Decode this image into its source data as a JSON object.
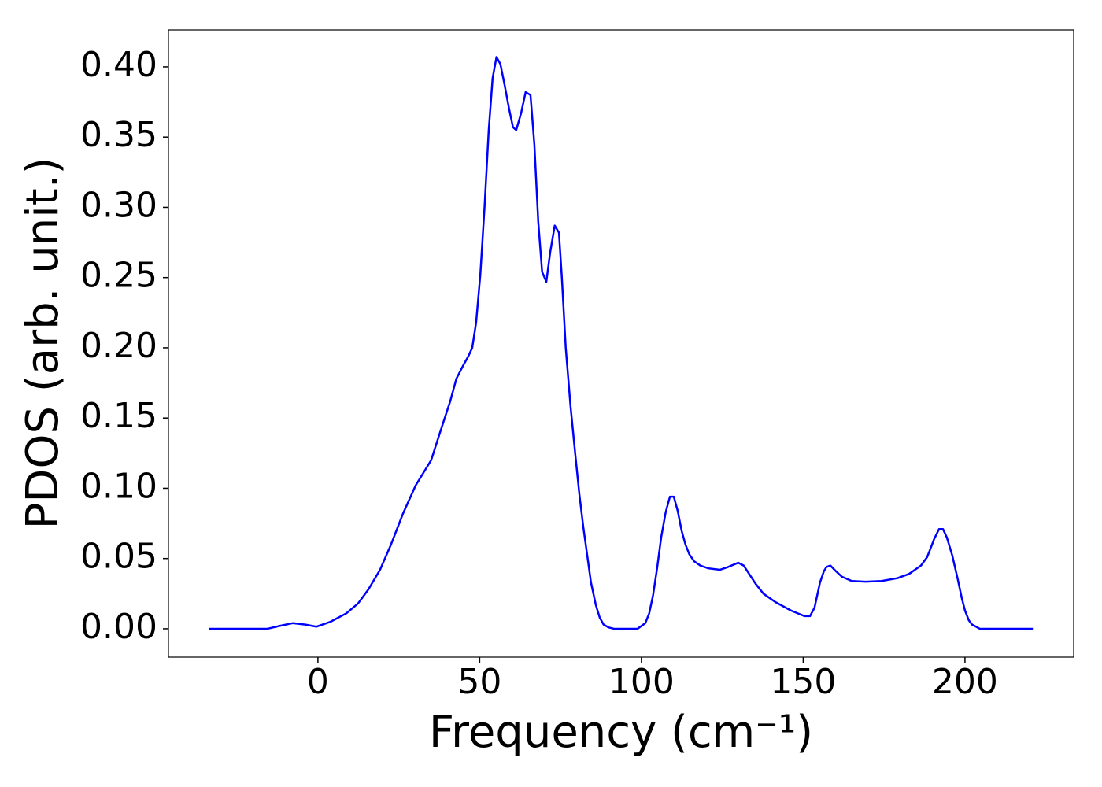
{
  "chart_data": {
    "type": "line",
    "xlabel": "Frequency (cm⁻¹)",
    "ylabel": "PDOS (arb. unit.)",
    "x": [
      -33.6,
      -15.6,
      -11.9,
      -7.8,
      -3.9,
      -0.5,
      3.9,
      8.8,
      12.4,
      15.6,
      19.2,
      22.6,
      26.3,
      30.2,
      35,
      37.5,
      40.9,
      42.8,
      44.8,
      46.5,
      47.7,
      48.9,
      50.2,
      51.5,
      52.8,
      54,
      55.2,
      56.4,
      57.8,
      59.1,
      60.3,
      61.3,
      62.8,
      64.2,
      65.7,
      66.9,
      68.1,
      69.3,
      70.6,
      71.8,
      73.2,
      74.5,
      75.4,
      76.6,
      78.1,
      79.6,
      80.8,
      82,
      83.2,
      84.4,
      85.9,
      87.1,
      88.3,
      89.8,
      91.5,
      98.8,
      101.2,
      102.4,
      103.6,
      104.9,
      106.1,
      107.5,
      108.8,
      110,
      111.2,
      112.4,
      113.6,
      114.8,
      116.3,
      118.2,
      120.7,
      124.3,
      126.8,
      129.9,
      131.6,
      133.3,
      135.3,
      137.7,
      141.4,
      146.2,
      150.4,
      152.1,
      153.5,
      155.2,
      156.4,
      157.2,
      158.4,
      160.1,
      162,
      165,
      169.3,
      174.2,
      179.1,
      182.7,
      186.4,
      188.3,
      189.5,
      190.5,
      192,
      193.2,
      194.4,
      196.1,
      197.8,
      199,
      200,
      201.2,
      202.2,
      204.6,
      221
    ],
    "series": [
      {
        "name": "PDOS",
        "color": "#0000ff",
        "values": [
          0,
          0,
          0.002,
          0.004,
          0.003,
          0.0015,
          0.005,
          0.011,
          0.018,
          0.028,
          0.042,
          0.06,
          0.082,
          0.102,
          0.12,
          0.138,
          0.162,
          0.178,
          0.187,
          0.194,
          0.2,
          0.218,
          0.252,
          0.3,
          0.355,
          0.392,
          0.407,
          0.402,
          0.386,
          0.37,
          0.357,
          0.355,
          0.367,
          0.382,
          0.38,
          0.345,
          0.29,
          0.254,
          0.247,
          0.268,
          0.287,
          0.282,
          0.25,
          0.2,
          0.158,
          0.123,
          0.096,
          0.073,
          0.053,
          0.033,
          0.017,
          0.008,
          0.003,
          0.001,
          0,
          0,
          0.004,
          0.011,
          0.024,
          0.044,
          0.065,
          0.083,
          0.094,
          0.094,
          0.084,
          0.07,
          0.06,
          0.053,
          0.048,
          0.045,
          0.043,
          0.042,
          0.044,
          0.047,
          0.045,
          0.039,
          0.032,
          0.025,
          0.019,
          0.013,
          0.009,
          0.009,
          0.015,
          0.033,
          0.041,
          0.044,
          0.045,
          0.041,
          0.037,
          0.034,
          0.0335,
          0.034,
          0.036,
          0.039,
          0.045,
          0.051,
          0.058,
          0.064,
          0.071,
          0.071,
          0.065,
          0.052,
          0.035,
          0.022,
          0.013,
          0.006,
          0.003,
          0,
          0
        ]
      }
    ],
    "xlim": [
      -46.2,
      233.6
    ],
    "ylim": [
      -0.0202,
      0.4263
    ],
    "xticks": [
      0,
      50,
      100,
      150,
      200
    ],
    "yticks": [
      {
        "value": 0,
        "label": "0.00"
      },
      {
        "value": 0.05,
        "label": "0.05"
      },
      {
        "value": 0.1,
        "label": "0.10"
      },
      {
        "value": 0.15,
        "label": "0.15"
      },
      {
        "value": 0.2,
        "label": "0.20"
      },
      {
        "value": 0.25,
        "label": "0.25"
      },
      {
        "value": 0.3,
        "label": "0.30"
      },
      {
        "value": 0.35,
        "label": "0.35"
      },
      {
        "value": 0.4,
        "label": "0.40"
      }
    ],
    "grid": false
  }
}
